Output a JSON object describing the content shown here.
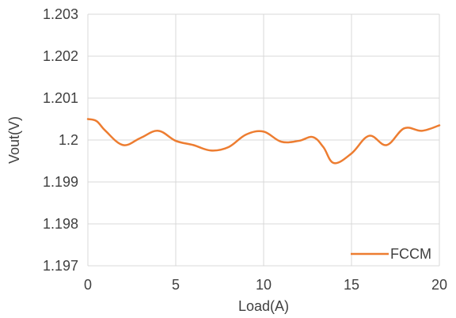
{
  "chart_data": {
    "type": "line",
    "title": "",
    "xlabel": "Load(A)",
    "ylabel": "Vout(V)",
    "xlim": [
      0,
      20
    ],
    "ylim": [
      1.197,
      1.203
    ],
    "x_ticks": [
      "0",
      "5",
      "10",
      "15",
      "20"
    ],
    "y_ticks": [
      "1.197",
      "1.198",
      "1.199",
      "1.2",
      "1.201",
      "1.202",
      "1.203"
    ],
    "grid": true,
    "legend_position": "bottom-right",
    "series": [
      {
        "name": "FCCM",
        "color": "#ED7D31",
        "x": [
          0,
          0.5,
          1,
          2,
          3,
          4,
          5,
          6,
          7,
          8,
          9,
          10,
          11,
          12,
          12.8,
          13.4,
          14,
          15,
          16,
          17,
          18,
          19,
          20
        ],
        "y": [
          1.2005,
          1.20045,
          1.20022,
          1.19988,
          1.20005,
          1.20022,
          1.19998,
          1.19988,
          1.19975,
          1.19983,
          1.20013,
          1.2002,
          1.19996,
          1.19998,
          1.20007,
          1.19983,
          1.19945,
          1.19968,
          1.2001,
          1.19988,
          1.20028,
          1.20022,
          1.20035
        ]
      }
    ]
  }
}
